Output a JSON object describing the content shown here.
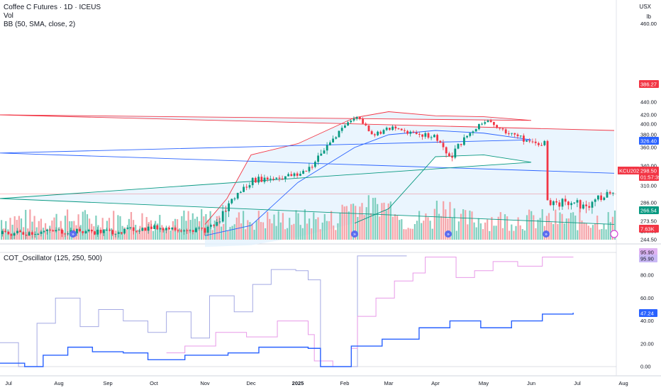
{
  "header": {
    "title": "Coffee C Futures · 1D · ICEUS",
    "vol": "Vol",
    "bb": "BB (50, SMA, close, 2)",
    "osc": "COT_Oscillator (125, 250, 500)",
    "currency": "USX",
    "unit": "lb"
  },
  "chart_data": [
    {
      "type": "candlestick",
      "title": "Coffee C Futures · 1D · ICEUS",
      "x_labels": [
        "Jul",
        "Aug",
        "Sep",
        "Oct",
        "Nov",
        "Dec",
        "2025",
        "Feb",
        "Mar",
        "Apr",
        "May",
        "Jun",
        "Jul",
        "Aug"
      ],
      "y_ticks": [
        244.5,
        256.0,
        273.5,
        286.0,
        310.0,
        340.0,
        360.0,
        380.0,
        400.0,
        420.0,
        440.0,
        460.0
      ],
      "y_labels": [
        "244.50",
        "256.00",
        "273.50",
        "286.00",
        "310.00",
        "340.00",
        "360.00",
        "380.00",
        "400.00",
        "420.00",
        "440.00",
        "460.00"
      ],
      "price_path": [
        [
          "Jul",
          252
        ],
        [
          "Aug",
          256
        ],
        [
          "Sep",
          255
        ],
        [
          "Oct",
          262
        ],
        [
          "Nov",
          258
        ],
        [
          "Nov-mid",
          284
        ],
        [
          "Dec",
          318
        ],
        [
          "Dec-mid",
          322
        ],
        [
          "2025",
          326
        ],
        [
          "Jan-mid",
          352
        ],
        [
          "Feb",
          418
        ],
        [
          "Feb-mid",
          380
        ],
        [
          "Mar",
          392
        ],
        [
          "Apr",
          376
        ],
        [
          "Apr-mid",
          346
        ],
        [
          "May",
          408
        ],
        [
          "May-mid",
          388
        ],
        [
          "Jun",
          366
        ],
        [
          "Jun-mid",
          368
        ],
        [
          "Jul",
          322
        ],
        [
          "Jul-mid",
          286
        ],
        [
          "Jul-end",
          304
        ]
      ],
      "bollinger": {
        "upper": [
          [
            "Nov",
            268
          ],
          [
            "Nov-mid",
            292
          ],
          [
            "Dec",
            352
          ],
          [
            "2025",
            366
          ],
          [
            "Feb",
            414
          ],
          [
            "Mar",
            425
          ],
          [
            "Apr",
            418
          ],
          [
            "May",
            416
          ],
          [
            "Jun",
            408
          ],
          [
            "Jul",
            420
          ],
          [
            "Jul-end",
            388
          ]
        ],
        "middle": [
          [
            "Nov",
            250
          ],
          [
            "Dec",
            266
          ],
          [
            "2025",
            315
          ],
          [
            "Feb",
            360
          ],
          [
            "Mar",
            380
          ],
          [
            "Apr",
            388
          ],
          [
            "May",
            383
          ],
          [
            "Jun",
            372
          ],
          [
            "Jul",
            354
          ],
          [
            "Jul-end",
            329
          ]
        ],
        "lower": [
          [
            "Feb",
            270
          ],
          [
            "Mar",
            282
          ],
          [
            "Apr",
            350
          ],
          [
            "May",
            352
          ],
          [
            "Jun",
            344
          ],
          [
            "Jul",
            292
          ],
          [
            "Jul-end",
            268
          ]
        ]
      },
      "badges": [
        {
          "label": "386.27",
          "value": 386.27,
          "color": "#f23645"
        },
        {
          "label": "326.40",
          "value": 326.4,
          "color": "#2962ff"
        },
        {
          "label": "KCU2025",
          "value": 298.5,
          "color": "#f23645"
        },
        {
          "label": "298.50",
          "value": 298.5,
          "color": "#f23645"
        },
        {
          "label": "01:57:39",
          "value": 293.5,
          "color": "#f23645"
        },
        {
          "label": "266.54",
          "value": 266.54,
          "color": "#089981"
        },
        {
          "label": "7.63K",
          "value": 249.5,
          "color": "#f23645"
        }
      ]
    },
    {
      "type": "line",
      "title": "COT_Oscillator (125, 250, 500)",
      "y_ticks": [
        0,
        20,
        40,
        60,
        80
      ],
      "y_labels": [
        "0.00",
        "20.00",
        "40.00",
        "60.00",
        "80.00"
      ],
      "series": [
        {
          "color": "#a4a9e3",
          "values": [
            [
              0,
              21
            ],
            [
              0.03,
              0
            ],
            [
              0.06,
              38
            ],
            [
              0.09,
              60
            ],
            [
              0.13,
              35
            ],
            [
              0.16,
              50
            ],
            [
              0.2,
              40
            ],
            [
              0.24,
              30
            ],
            [
              0.27,
              48
            ],
            [
              0.31,
              25
            ],
            [
              0.34,
              62
            ],
            [
              0.38,
              48
            ],
            [
              0.41,
              72
            ],
            [
              0.44,
              85
            ],
            [
              0.48,
              84
            ],
            [
              0.5,
              76
            ],
            [
              0.52,
              0
            ],
            [
              0.55,
              0
            ],
            [
              0.58,
              97
            ],
            [
              0.62,
              97
            ],
            [
              0.66,
              97
            ]
          ]
        },
        {
          "color": "#e899e8",
          "values": [
            [
              0.27,
              12
            ],
            [
              0.3,
              18
            ],
            [
              0.35,
              30
            ],
            [
              0.4,
              26
            ],
            [
              0.45,
              40
            ],
            [
              0.5,
              28
            ],
            [
              0.51,
              5
            ],
            [
              0.54,
              0
            ],
            [
              0.57,
              16
            ],
            [
              0.58,
              44
            ],
            [
              0.61,
              60
            ],
            [
              0.64,
              75
            ],
            [
              0.67,
              82
            ],
            [
              0.69,
              96
            ],
            [
              0.72,
              96
            ],
            [
              0.74,
              78
            ],
            [
              0.77,
              84
            ],
            [
              0.8,
              92
            ],
            [
              0.84,
              88
            ],
            [
              0.88,
              96
            ],
            [
              0.93,
              95.9
            ]
          ]
        },
        {
          "color": "#2962ff",
          "values": [
            [
              0,
              3
            ],
            [
              0.04,
              0
            ],
            [
              0.07,
              10
            ],
            [
              0.11,
              17
            ],
            [
              0.15,
              13
            ],
            [
              0.2,
              12
            ],
            [
              0.24,
              6
            ],
            [
              0.3,
              10
            ],
            [
              0.37,
              12
            ],
            [
              0.42,
              17
            ],
            [
              0.5,
              16
            ],
            [
              0.52,
              0
            ],
            [
              0.55,
              0
            ],
            [
              0.57,
              18
            ],
            [
              0.62,
              24
            ],
            [
              0.68,
              34
            ],
            [
              0.73,
              40
            ],
            [
              0.78,
              34
            ],
            [
              0.83,
              40
            ],
            [
              0.88,
              46
            ],
            [
              0.93,
              47.24
            ]
          ]
        }
      ],
      "badges": [
        {
          "label": "95.90",
          "value": 95.9,
          "color": "#e0b3f2"
        },
        {
          "label": "95.90",
          "value": 92.0,
          "color": "#c9b8f5"
        },
        {
          "label": "47.24",
          "value": 47.24,
          "color": "#2962ff"
        }
      ]
    }
  ]
}
